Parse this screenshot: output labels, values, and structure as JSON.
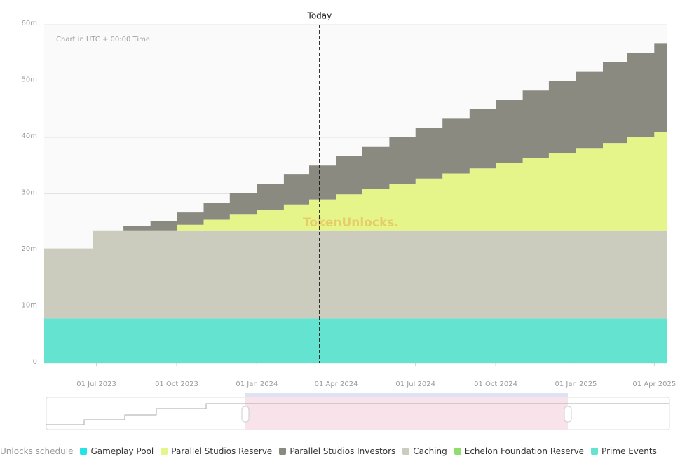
{
  "chart_data": {
    "type": "stacked-step-area",
    "note": "Chart in UTC + 00:00 Time",
    "watermark": "TokenUnlocks.",
    "today": {
      "label": "Today",
      "date": "2024-03-13"
    },
    "legend_title": "Unlocks schedule",
    "x": [
      "2023-05-02",
      "2023-06-27",
      "2023-08-01",
      "2023-09-01",
      "2023-10-01",
      "2023-11-01",
      "2023-12-01",
      "2024-01-01",
      "2024-02-01",
      "2024-03-01",
      "2024-04-01",
      "2024-05-01",
      "2024-06-01",
      "2024-07-01",
      "2024-08-01",
      "2024-09-01",
      "2024-10-01",
      "2024-11-01",
      "2024-12-01",
      "2025-01-01",
      "2025-02-01",
      "2025-03-01",
      "2025-04-01",
      "2025-04-16"
    ],
    "xlim": [
      "2023-05-02",
      "2025-04-16"
    ],
    "xticks": [
      {
        "value": "2023-07-01",
        "label": "01 Jul 2023"
      },
      {
        "value": "2023-10-01",
        "label": "01 Oct 2023"
      },
      {
        "value": "2024-01-01",
        "label": "01 Jan 2024"
      },
      {
        "value": "2024-04-01",
        "label": "01 Apr 2024"
      },
      {
        "value": "2024-07-01",
        "label": "01 Jul 2024"
      },
      {
        "value": "2024-10-01",
        "label": "01 Oct 2024"
      },
      {
        "value": "2025-01-01",
        "label": "01 Jan 2025"
      },
      {
        "value": "2025-04-01",
        "label": "01 Apr 2025"
      }
    ],
    "ylim": [
      0,
      60
    ],
    "yticks": [
      0,
      {
        "value": 10,
        "label": "10m"
      },
      {
        "value": 20,
        "label": "20m"
      },
      {
        "value": 30,
        "label": "30m"
      },
      {
        "value": 40,
        "label": "40m"
      },
      {
        "value": 50,
        "label": "50m"
      },
      {
        "value": 60,
        "label": "60m"
      }
    ],
    "grid": true,
    "series": [
      {
        "name": "Gameplay Pool",
        "color": "#27e3e3",
        "values": [
          0,
          0,
          0,
          0,
          0,
          0,
          0,
          0,
          0,
          0,
          0,
          0,
          0,
          0,
          0,
          0,
          0,
          0,
          0,
          0,
          0,
          0,
          0,
          0
        ]
      },
      {
        "name": "Parallel Studios Reserve",
        "color": "#e6f58a",
        "values": [
          0,
          0,
          0,
          0,
          1.0,
          1.9,
          2.8,
          3.7,
          4.6,
          5.5,
          6.4,
          7.4,
          8.3,
          9.2,
          10.1,
          11.0,
          11.9,
          12.8,
          13.7,
          14.6,
          15.5,
          16.5,
          17.4,
          17.4
        ]
      },
      {
        "name": "Parallel Studios Investors",
        "color": "#8b8a80",
        "values": [
          0,
          0,
          0.8,
          1.6,
          2.2,
          3.0,
          3.8,
          4.5,
          5.3,
          6.0,
          6.8,
          7.4,
          8.2,
          9.0,
          9.7,
          10.5,
          11.2,
          12.0,
          12.8,
          13.5,
          14.3,
          15.0,
          15.7,
          15.7
        ]
      },
      {
        "name": "Caching",
        "color": "#cbcbbe",
        "values": [
          12.4,
          15.6,
          15.6,
          15.6,
          15.6,
          15.6,
          15.6,
          15.6,
          15.6,
          15.6,
          15.6,
          15.6,
          15.6,
          15.6,
          15.6,
          15.6,
          15.6,
          15.6,
          15.6,
          15.6,
          15.6,
          15.6,
          15.6,
          15.6
        ]
      },
      {
        "name": "Echelon Foundation Reserve",
        "color": "#8fdc6f",
        "values": [
          0,
          0,
          0,
          0,
          0,
          0,
          0,
          0,
          0,
          0,
          0,
          0,
          0,
          0,
          0,
          0,
          0,
          0,
          0,
          0,
          0,
          0,
          0,
          0
        ]
      },
      {
        "name": "Prime Events",
        "color": "#64e3d0",
        "values": [
          7.9,
          7.9,
          7.9,
          7.9,
          7.9,
          7.9,
          7.9,
          7.9,
          7.9,
          7.9,
          7.9,
          7.9,
          7.9,
          7.9,
          7.9,
          7.9,
          7.9,
          7.9,
          7.9,
          7.9,
          7.9,
          7.9,
          7.9,
          7.9
        ]
      }
    ]
  }
}
